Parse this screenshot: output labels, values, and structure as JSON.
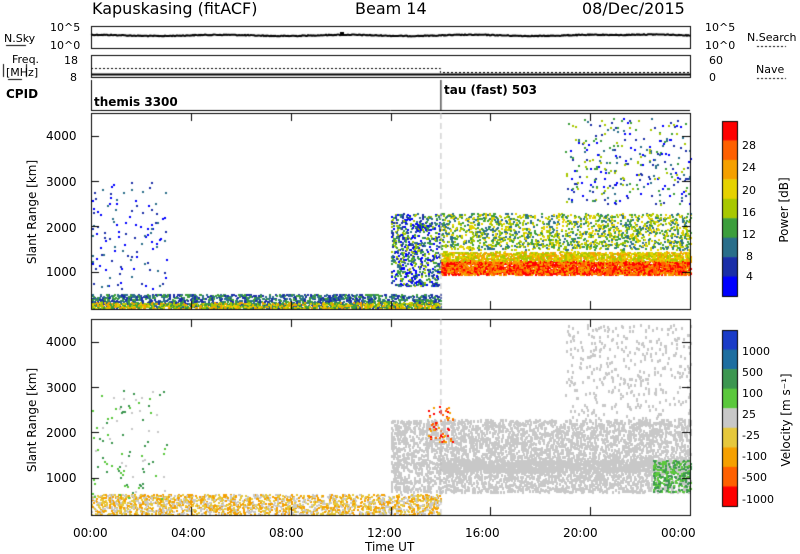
{
  "header": {
    "station": "Kapuskasing (fitACF)",
    "beam": "Beam 14",
    "date": "08/Dec/2015"
  },
  "strips": {
    "nsky_label": "N.Sky",
    "nsky_ticks": [
      "10^5",
      "10^0"
    ],
    "nsearch_label": "N.Search",
    "nsearch_ticks": [
      "10^5",
      "10^0"
    ],
    "freq_label": "Freq.",
    "freq_unit": "[MHz]",
    "freq_ticks": [
      "18",
      "8"
    ],
    "nave_label": "Nave",
    "nave_ticks": [
      "60",
      "0"
    ],
    "cpid_label": "CPID",
    "cpid_segments": [
      {
        "name": "themis 3300",
        "start_hour": 0
      },
      {
        "name": "tau (fast) 503",
        "start_hour": 14
      }
    ]
  },
  "chart_data": [
    {
      "type": "heatmap",
      "panel": "power",
      "ylabel": "Slant Range [km]",
      "yticks": [
        "4000",
        "3000",
        "2000",
        "1000"
      ],
      "ylim": [
        180,
        4500
      ],
      "xlim": [
        0,
        24
      ],
      "colorbar_label": "Power [dB]",
      "colorbar_ticks": [
        "28",
        "24",
        "20",
        "16",
        "12",
        "8",
        "4"
      ],
      "colorbar_colors": [
        "#ff0000",
        "#ff6000",
        "#f5a000",
        "#e6d200",
        "#a8c800",
        "#3c9e3c",
        "#2a6e8a",
        "#1a2ea8",
        "#0000ff"
      ],
      "scatter_regions": [
        {
          "hours": [
            0,
            14
          ],
          "range_km": [
            200,
            600
          ],
          "level": "low"
        },
        {
          "hours": [
            12,
            14
          ],
          "range_km": [
            800,
            2300
          ],
          "level": "mixed"
        },
        {
          "hours": [
            14,
            24
          ],
          "range_km": [
            900,
            1300
          ],
          "level": "high"
        },
        {
          "hours": [
            14,
            24
          ],
          "range_km": [
            1500,
            2300
          ],
          "level": "medium"
        },
        {
          "hours": [
            20,
            24
          ],
          "range_km": [
            2500,
            4400
          ],
          "level": "sparse"
        }
      ]
    },
    {
      "type": "heatmap",
      "panel": "velocity",
      "ylabel": "Slant Range [km]",
      "yticks": [
        "4000",
        "3000",
        "2000",
        "1000"
      ],
      "ylim": [
        180,
        4500
      ],
      "xlim": [
        0,
        24
      ],
      "xticks": [
        "00:00",
        "04:00",
        "08:00",
        "12:00",
        "16:00",
        "20:00",
        "00:00"
      ],
      "xlabel": "Time UT",
      "colorbar_label": "Velocity [m s⁻¹]",
      "colorbar_ticks": [
        "1000",
        "500",
        "100",
        "25",
        "-25",
        "-100",
        "-500",
        "-1000"
      ],
      "colorbar_colors": [
        "#1a3cc8",
        "#1e6ea0",
        "#3c9650",
        "#5ac83c",
        "#c8c8c8",
        "#e6c83c",
        "#f5a000",
        "#ff6000",
        "#ff0000"
      ],
      "scatter_regions": [
        {
          "hours": [
            0,
            14
          ],
          "range_km": [
            200,
            600
          ],
          "level": "negative-slow"
        },
        {
          "hours": [
            12,
            24
          ],
          "range_km": [
            900,
            2300
          ],
          "level": "ground-scatter"
        },
        {
          "hours": [
            22,
            24
          ],
          "range_km": [
            800,
            1400
          ],
          "level": "positive"
        }
      ]
    }
  ]
}
